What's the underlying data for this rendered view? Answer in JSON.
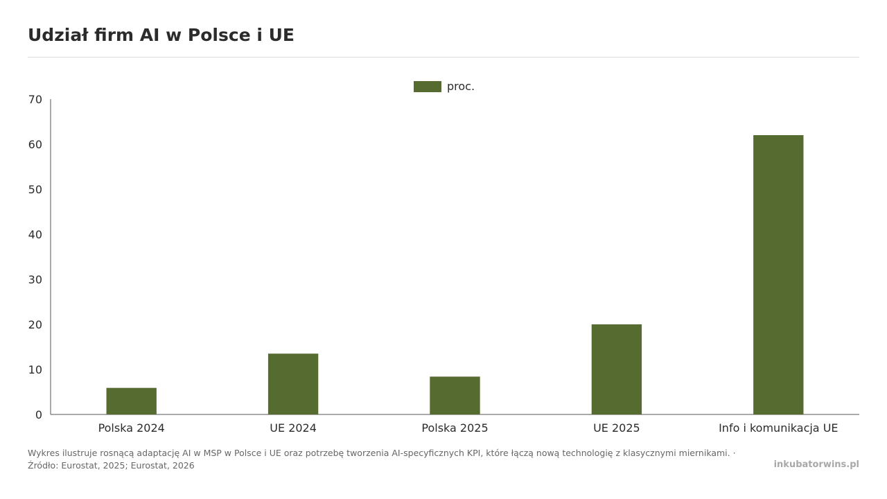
{
  "title": "Udział firm AI w Polsce i UE",
  "footer": {
    "description": "Wykres ilustruje rosnącą adaptację AI w MSP w Polsce i UE oraz potrzebę tworzenia AI-specyficznych KPI, które łączą nową technologię z klasycznymi miernikami. ·",
    "source": "Źródło: Eurostat, 2025; Eurostat, 2026",
    "brand": "inkubatorwins.pl"
  },
  "chart_data": {
    "type": "bar",
    "categories": [
      "Polska 2024",
      "UE 2024",
      "Polska 2025",
      "UE 2025",
      "Info i komunikacja UE"
    ],
    "series": [
      {
        "name": "proc.",
        "values": [
          5.9,
          13.5,
          8.4,
          20.0,
          62.0
        ]
      }
    ],
    "ylim": [
      0,
      70
    ],
    "yticks": [
      0,
      10,
      20,
      30,
      40,
      50,
      60,
      70
    ],
    "legend": "top-center",
    "grid": false,
    "colors": {
      "bar": "#566b30",
      "axis": "#555555"
    }
  }
}
